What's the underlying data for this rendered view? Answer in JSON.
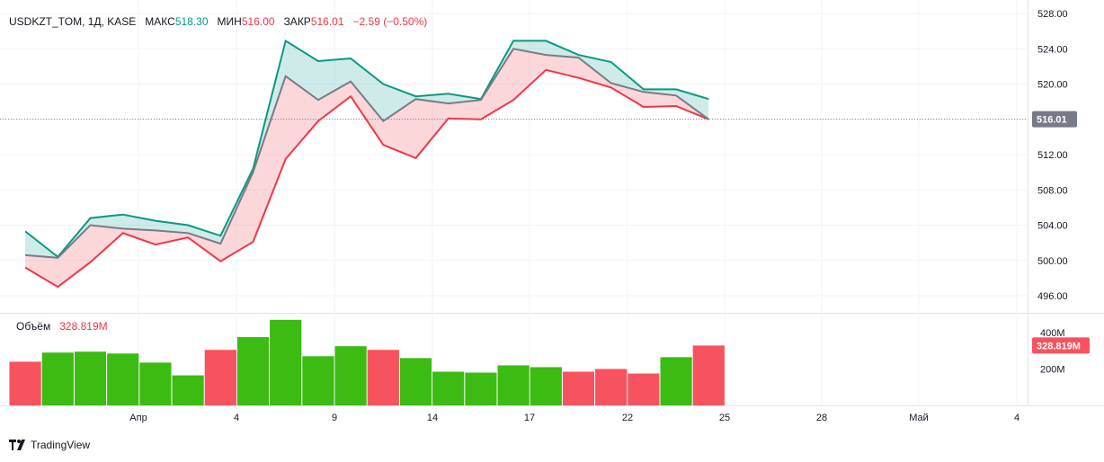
{
  "header": {
    "symbol": "USDKZT_TOM, 1Д, KASE",
    "high_label": "МАКС",
    "high_value": "518.30",
    "low_label": "МИН",
    "low_value": "516.00",
    "close_label": "ЗАКР",
    "close_value": "516.01",
    "change": "−2.59 (−0.50%)"
  },
  "volume_legend": {
    "label": "Объём",
    "value": "328.819M"
  },
  "price_badge": "516.01",
  "volume_badge": "328.819M",
  "brand": "TradingView",
  "colors": {
    "up": "#26a69a",
    "high_line": "#089981",
    "low_line": "#f23645",
    "mid_line": "#787b86",
    "fill_up": "rgba(38,166,154,0.22)",
    "fill_down": "rgba(242,54,69,0.20)",
    "vol_up": "#3cbb12",
    "vol_down": "#f7525f"
  },
  "chart_data": {
    "type": "area",
    "x_ticks": [
      "Апр",
      "4",
      "9",
      "14",
      "17",
      "22",
      "25",
      "28",
      "Май",
      "4"
    ],
    "y_ticks": [
      "528.00",
      "524.00",
      "520.00",
      "516.00",
      "512.00",
      "508.00",
      "504.00",
      "500.00",
      "496.00"
    ],
    "ylim": [
      496,
      528
    ],
    "last_price": 516.01,
    "grid": true,
    "series": [
      {
        "name": "МАКС",
        "values": [
          503.3,
          500.4,
          504.8,
          505.2,
          504.5,
          504.0,
          502.8,
          510.4,
          524.9,
          522.6,
          522.9,
          520.0,
          518.6,
          518.9,
          518.3,
          524.9,
          524.9,
          523.3,
          522.5,
          519.4,
          519.4,
          518.3
        ]
      },
      {
        "name": "МИН",
        "values": [
          499.2,
          497.0,
          499.8,
          503.1,
          501.8,
          502.6,
          499.9,
          502.1,
          511.5,
          515.8,
          518.6,
          513.1,
          511.6,
          516.1,
          516.0,
          518.2,
          521.6,
          520.7,
          519.6,
          517.4,
          517.5,
          516.0
        ]
      },
      {
        "name": "ЗАКР",
        "values": [
          500.6,
          500.3,
          504.0,
          503.6,
          503.4,
          503.1,
          501.9,
          510.0,
          520.9,
          518.2,
          520.3,
          515.8,
          518.3,
          517.8,
          518.2,
          524.0,
          523.3,
          523.0,
          520.1,
          519.1,
          518.7,
          516.0
        ]
      }
    ],
    "volume": {
      "y_ticks": [
        "400M",
        "200M"
      ],
      "ylim": [
        0,
        400
      ],
      "values": [
        240,
        290,
        295,
        285,
        235,
        165,
        305,
        375,
        470,
        270,
        325,
        305,
        260,
        185,
        180,
        220,
        210,
        185,
        200,
        175,
        265,
        328.819
      ],
      "directions": [
        "down",
        "up",
        "up",
        "up",
        "up",
        "up",
        "down",
        "up",
        "up",
        "up",
        "up",
        "down",
        "up",
        "up",
        "up",
        "up",
        "up",
        "down",
        "down",
        "down",
        "up",
        "down"
      ]
    }
  }
}
